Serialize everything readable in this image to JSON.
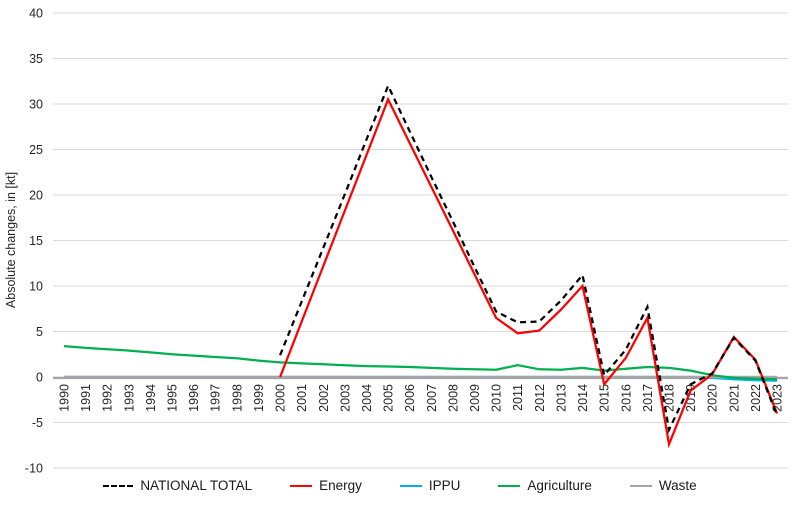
{
  "chart_data": {
    "type": "line",
    "title": "",
    "xlabel": "",
    "ylabel": "Absolute changes, in [kt]",
    "ylim": [
      -10,
      40
    ],
    "ytick_step": 5,
    "grid": "horizontal",
    "legend_position": "bottom",
    "years": [
      1990,
      1991,
      1992,
      1993,
      1994,
      1995,
      1996,
      1997,
      1998,
      1999,
      2000,
      2001,
      2002,
      2003,
      2004,
      2005,
      2006,
      2007,
      2008,
      2009,
      2010,
      2011,
      2012,
      2013,
      2014,
      2015,
      2016,
      2017,
      2018,
      2019,
      2020,
      2021,
      2022,
      2023
    ],
    "series": [
      {
        "name": "NATIONAL TOTAL",
        "color": "#000000",
        "style": "dashed",
        "values": [
          null,
          null,
          null,
          null,
          null,
          null,
          null,
          null,
          null,
          null,
          2.4,
          8.3,
          14.2,
          20.1,
          26.1,
          32.0,
          27.0,
          22.0,
          17.1,
          12.1,
          7.2,
          6.0,
          6.1,
          8.4,
          11.2,
          0.2,
          3.0,
          7.7,
          -5.8,
          -0.8,
          0.4,
          4.3,
          1.8,
          -4.2
        ]
      },
      {
        "name": "Energy",
        "color": "#FF0000",
        "style": "solid",
        "values": [
          null,
          null,
          null,
          null,
          null,
          null,
          null,
          null,
          null,
          null,
          0.0,
          6.1,
          12.2,
          18.3,
          24.4,
          30.5,
          25.7,
          20.9,
          16.1,
          11.3,
          6.5,
          4.8,
          5.1,
          7.4,
          10.0,
          -0.8,
          2.1,
          6.5,
          -7.4,
          -1.5,
          0.3,
          4.4,
          1.9,
          -4.0
        ]
      },
      {
        "name": "IPPU",
        "color": "#00B0F0",
        "style": "solid",
        "values": [
          0,
          0,
          0,
          0,
          0,
          0,
          0,
          0,
          0,
          0,
          0,
          0,
          0,
          0,
          0,
          0,
          0,
          0,
          0,
          0,
          0,
          0,
          0,
          0,
          0,
          0,
          0,
          0,
          0,
          0,
          -0.1,
          -0.25,
          -0.35,
          -0.4
        ]
      },
      {
        "name": "Agriculture",
        "color": "#00B050",
        "style": "solid",
        "values": [
          3.4,
          3.2,
          3.05,
          2.9,
          2.7,
          2.5,
          2.35,
          2.2,
          2.05,
          1.8,
          1.6,
          1.5,
          1.4,
          1.3,
          1.2,
          1.15,
          1.1,
          1.0,
          0.9,
          0.85,
          0.8,
          1.3,
          0.85,
          0.8,
          1.0,
          0.7,
          0.9,
          1.1,
          1.0,
          0.7,
          0.2,
          -0.1,
          -0.2,
          -0.25
        ]
      },
      {
        "name": "Waste",
        "color": "#A6A6A6",
        "style": "solid",
        "values": [
          0,
          0,
          0,
          0,
          0,
          0,
          0,
          0,
          0,
          0,
          0,
          0,
          0,
          0,
          0,
          0,
          0,
          0,
          0,
          0,
          0,
          0,
          0,
          0,
          0,
          0,
          0,
          0,
          0,
          0,
          0,
          0,
          0,
          0
        ]
      }
    ],
    "draw_order": [
      "IPPU",
      "Waste",
      "Agriculture",
      "Energy",
      "NATIONAL TOTAL"
    ],
    "colors": {
      "gridline": "#DADADA",
      "zero_axis": "#A6A6A6",
      "tick_text": "#262626",
      "legend_text": "#1a1a1a",
      "background": "#ffffff"
    }
  }
}
